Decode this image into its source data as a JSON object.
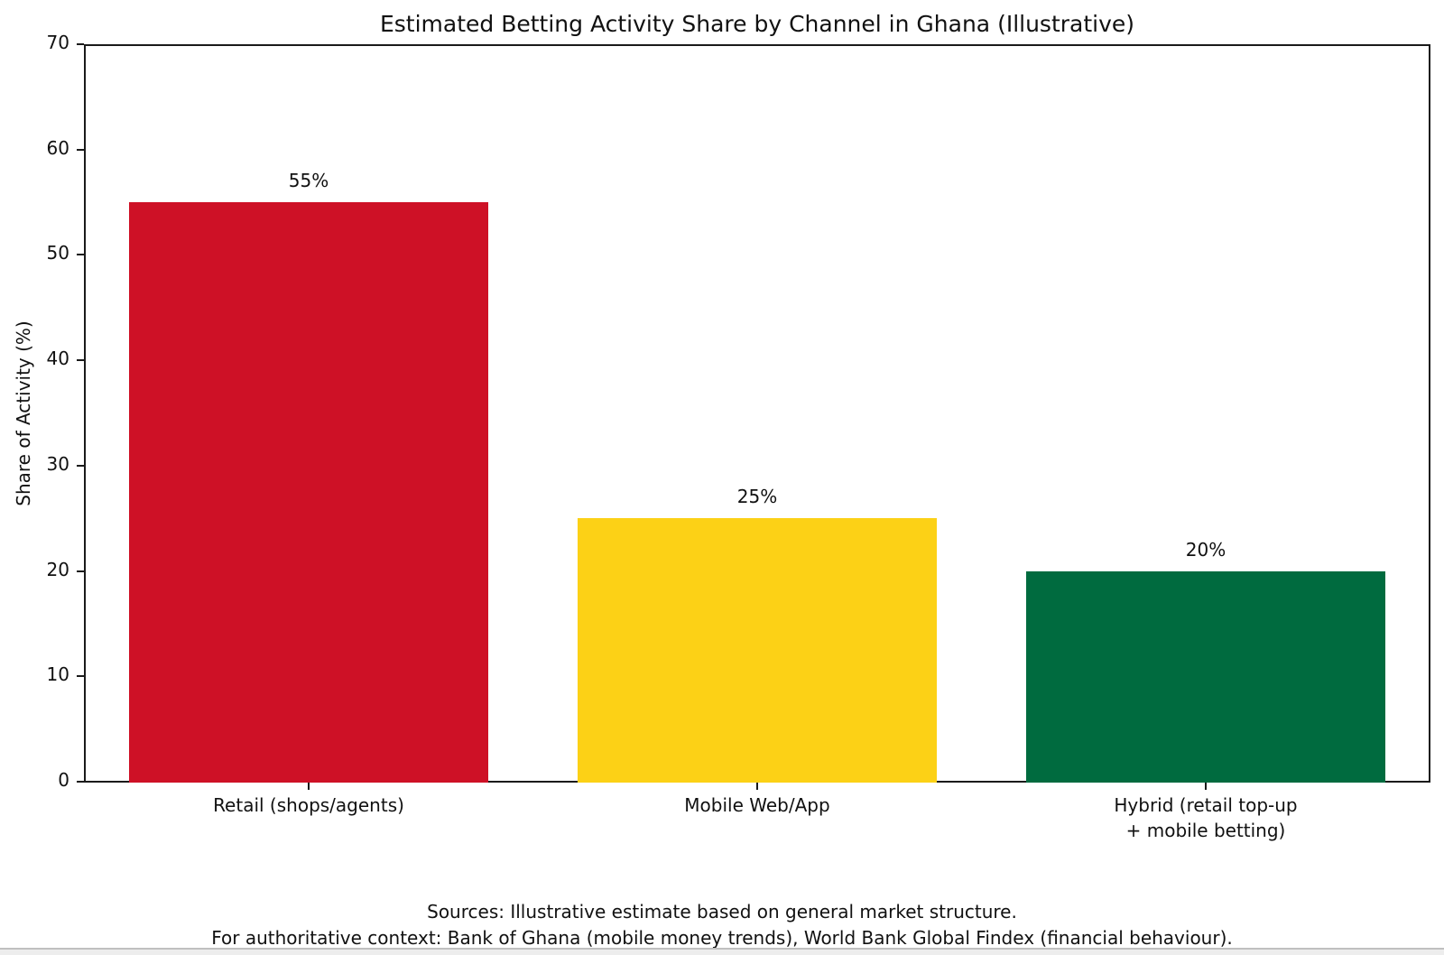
{
  "chart_data": {
    "type": "bar",
    "title": "Estimated Betting Activity Share by Channel in Ghana (Illustrative)",
    "ylabel": "Share of Activity (%)",
    "xlabel": "",
    "categories": [
      "Retail (shops/agents)",
      "Mobile Web/App",
      "Hybrid (retail top-up\n+ mobile betting)"
    ],
    "values": [
      55,
      25,
      20
    ],
    "value_labels": [
      "55%",
      "25%",
      "20%"
    ],
    "bar_colors": [
      "#CE1126",
      "#FCD116",
      "#006B3F"
    ],
    "ylim": [
      0,
      70
    ],
    "yticks": [
      0,
      10,
      20,
      30,
      40,
      50,
      60,
      70
    ],
    "grid": false,
    "legend_position": "none",
    "footnote_lines": [
      "Sources: Illustrative estimate based on general market structure.",
      "For authoritative context: Bank of Ghana (mobile money trends), World Bank Global Findex (financial behaviour)."
    ],
    "colors": {
      "text": "#111111",
      "axis": "#1a1a1a",
      "background": "#ffffff"
    }
  }
}
